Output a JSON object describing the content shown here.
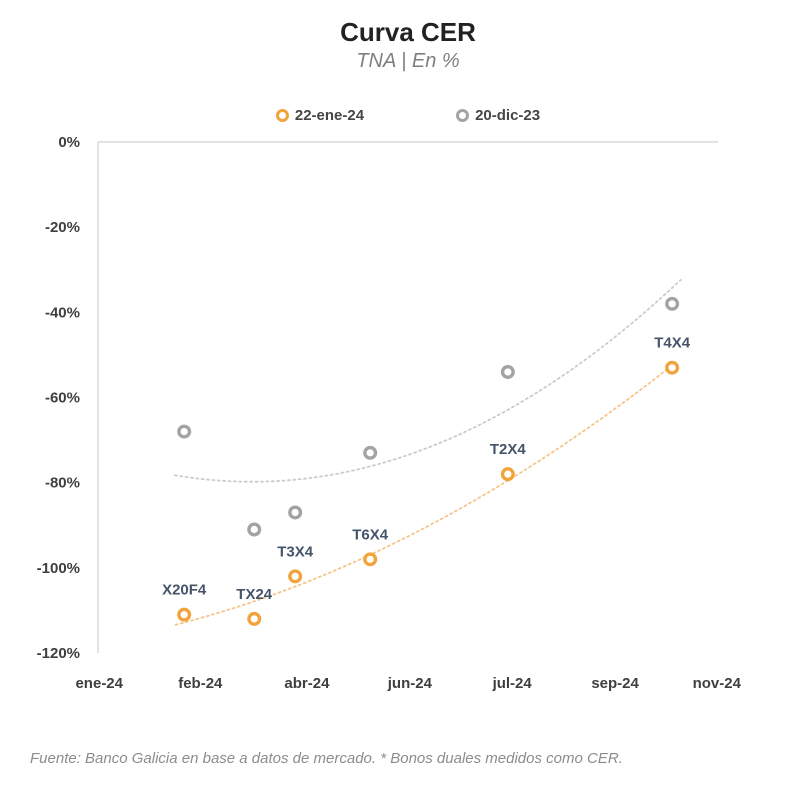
{
  "header": {
    "title": "Curva CER",
    "subtitle": "TNA | En %"
  },
  "legend": [
    {
      "label": "22-ene-24",
      "color": "#F1A33C",
      "marker": "ring-icon"
    },
    {
      "label": "20-dic-23",
      "color": "#A3A3A3",
      "marker": "ring-icon"
    }
  ],
  "footer": {
    "note": "Fuente: Banco Galicia en base a datos de mercado. * Bonos duales medidos como CER."
  },
  "chart_data": {
    "type": "scatter",
    "title": "Curva CER",
    "subtitle": "TNA | En %",
    "xlabel": "",
    "ylabel": "",
    "ylim": [
      -120,
      0
    ],
    "grid": false,
    "legend_position": "top",
    "axis_color": "#D9D9D9",
    "y_ticks": [
      "0%",
      "-20%",
      "-40%",
      "-60%",
      "-80%",
      "-100%",
      "-120%"
    ],
    "y_tick_values": [
      0,
      -20,
      -40,
      -60,
      -80,
      -100,
      -120
    ],
    "x_ticks": [
      "ene-24",
      "feb-24",
      "abr-24",
      "jun-24",
      "jul-24",
      "sep-24",
      "nov-24"
    ],
    "x_tick_pos": [
      0.002,
      0.165,
      0.337,
      0.503,
      0.668,
      0.834,
      0.998
    ],
    "series": [
      {
        "name": "20-dic-23",
        "color": "#A3A3A3",
        "trend_color": "#CBCBCB",
        "trendline": "polynomial-2",
        "trend_extend": [
          0.015,
          0.02
        ],
        "points": [
          {
            "label": "",
            "x": 0.139,
            "y": -68
          },
          {
            "label": "",
            "x": 0.252,
            "y": -91
          },
          {
            "label": "",
            "x": 0.318,
            "y": -87
          },
          {
            "label": "",
            "x": 0.439,
            "y": -73
          },
          {
            "label": "",
            "x": 0.661,
            "y": -54
          },
          {
            "label": "",
            "x": 0.926,
            "y": -38
          }
        ]
      },
      {
        "name": "22-ene-24",
        "color": "#F1A33C",
        "trend_color": "#F6C霧489",
        "trendline": "polynomial-2",
        "trend_extend": [
          0.014,
          0.004
        ],
        "points": [
          {
            "label": "X20F4",
            "x": 0.139,
            "y": -111
          },
          {
            "label": "TX24",
            "x": 0.252,
            "y": -112
          },
          {
            "label": "T3X4",
            "x": 0.318,
            "y": -102
          },
          {
            "label": "T6X4",
            "x": 0.439,
            "y": -98
          },
          {
            "label": "T2X4",
            "x": 0.661,
            "y": -78
          },
          {
            "label": "T4X4",
            "x": 0.926,
            "y": -53
          }
        ]
      }
    ]
  }
}
